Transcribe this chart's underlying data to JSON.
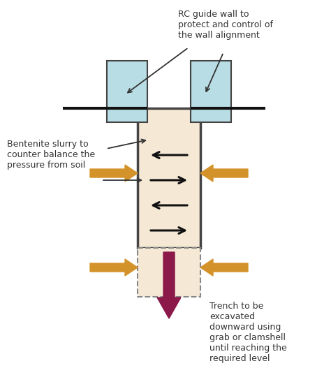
{
  "bg_color": "#ffffff",
  "guide_wall_color": "#b8dde4",
  "guide_wall_border": "#444444",
  "trench_fill_color": "#f5e8d5",
  "trench_border_color": "#444444",
  "dashed_box_color": "#888888",
  "orange_arrow_color": "#d4922a",
  "black_arrow_color": "#111111",
  "dark_red_arrow_color": "#8b1a4a",
  "ground_line_color": "#111111",
  "label_rc": "RC guide wall to\nprotect and control of\nthe wall alignment",
  "label_bentonite": "Bentenite slurry to\ncounter balance the\npressure from soil",
  "label_trench": "Trench to be\nexcavated\ndownward using\ngrab or clamshell\nuntil reaching the\nrequired level",
  "text_color": "#333333",
  "figw": 4.74,
  "figh": 5.47,
  "dpi": 100
}
